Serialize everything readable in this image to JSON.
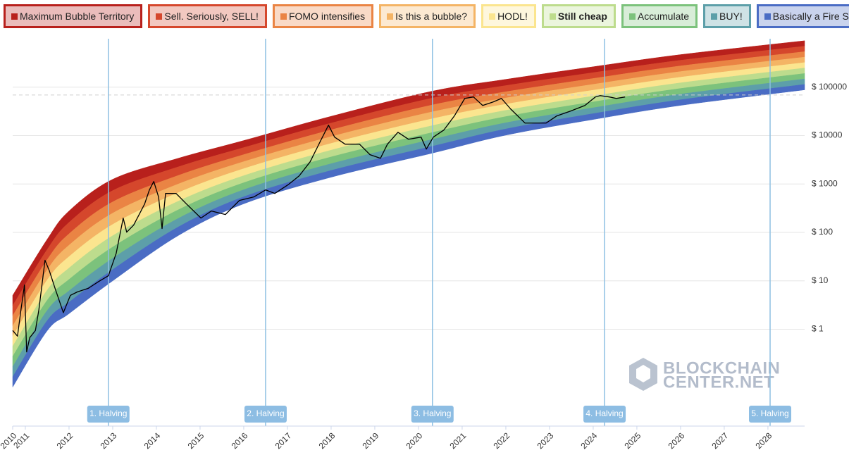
{
  "chart_data": {
    "type": "line",
    "log_y": true,
    "grid": true,
    "bands": [
      {
        "name": "Maximum Bubble Territory",
        "color": "#b8201c"
      },
      {
        "name": "Sell. Seriously, SELL!",
        "color": "#d5472c"
      },
      {
        "name": "FOMO intensifies",
        "color": "#ea8444"
      },
      {
        "name": "Is this a bubble?",
        "color": "#f4b465"
      },
      {
        "name": "HODL!",
        "color": "#fbe58f"
      },
      {
        "name": "Still cheap",
        "color": "#bddc8d"
      },
      {
        "name": "Accumulate",
        "color": "#7cc27c"
      },
      {
        "name": "BUY!",
        "color": "#5d9fa9"
      },
      {
        "name": "Basically a Fire Sale",
        "color": "#4a6cc4"
      }
    ],
    "highlighted_band": 5,
    "rainbow": {
      "x": [
        2010.71,
        2011.5,
        2012,
        2013,
        2014.5,
        2016,
        2018,
        2020.3,
        2022,
        2024,
        2026,
        2028.84
      ],
      "upper": [
        5,
        72,
        277,
        1250,
        3400,
        7900,
        25000,
        82000,
        145000,
        264000,
        470000,
        910000
      ],
      "lower": [
        0.064,
        0.93,
        2.1,
        10,
        86,
        390,
        1380,
        4300,
        10200,
        21500,
        42000,
        88000
      ]
    },
    "series": [
      {
        "color": "#000000",
        "x": [
          2010.71,
          2010.82,
          2010.9,
          2010.98,
          2011.03,
          2011.1,
          2011.23,
          2011.31,
          2011.39,
          2011.45,
          2011.55,
          2011.68,
          2011.87,
          2012.03,
          2012.19,
          2012.44,
          2012.68,
          2012.9,
          2013.08,
          2013.24,
          2013.32,
          2013.48,
          2013.73,
          2013.84,
          2013.94,
          2014.05,
          2014.13,
          2014.21,
          2014.45,
          2014.69,
          2015.02,
          2015.26,
          2015.58,
          2015.9,
          2016.23,
          2016.5,
          2016.71,
          2017.03,
          2017.27,
          2017.52,
          2017.76,
          2017.94,
          2018.08,
          2018.32,
          2018.65,
          2018.89,
          2019.13,
          2019.29,
          2019.53,
          2019.77,
          2020.06,
          2020.18,
          2020.34,
          2020.58,
          2020.82,
          2021.06,
          2021.26,
          2021.47,
          2021.71,
          2021.9,
          2022.11,
          2022.44,
          2022.68,
          2022.92,
          2023.16,
          2023.48,
          2023.81,
          2024.05,
          2024.16,
          2024.37,
          2024.53,
          2024.73
        ],
        "values": [
          0.94,
          0.72,
          2.55,
          8.2,
          0.34,
          0.67,
          0.94,
          2.55,
          9.7,
          26.6,
          16.1,
          7,
          2.2,
          5,
          5.9,
          7,
          9.7,
          12.7,
          37,
          198,
          101,
          142,
          386,
          755,
          1128,
          540,
          120,
          638,
          638,
          386,
          198,
          277,
          234,
          457,
          540,
          755,
          638,
          986,
          1475,
          2880,
          7850,
          16400,
          9290,
          6650,
          6650,
          4030,
          3400,
          6650,
          11700,
          8400,
          9290,
          5260,
          9290,
          13000,
          25300,
          58500,
          62700,
          41900,
          49500,
          58500,
          35400,
          18100,
          18100,
          18100,
          25300,
          32000,
          41900,
          62700,
          67000,
          62700,
          58500,
          62700
        ]
      }
    ],
    "reference_line": 69000,
    "halvings": [
      {
        "label": "1. Halving",
        "x": 2012.9
      },
      {
        "label": "2. Halving",
        "x": 2016.5
      },
      {
        "label": "3. Halving",
        "x": 2020.32
      },
      {
        "label": "4. Halving",
        "x": 2024.26
      },
      {
        "label": "5. Halving",
        "x": 2028.05
      }
    ],
    "watermark": [
      "BLOCKCHAIN",
      "CENTER.NET"
    ],
    "ylim": [
      0.01,
      1000000
    ],
    "yticks": [
      {
        "value": 1,
        "label": "$ 1"
      },
      {
        "value": 10,
        "label": "$ 10"
      },
      {
        "value": 100,
        "label": "$ 100"
      },
      {
        "value": 1000,
        "label": "$ 1000"
      },
      {
        "value": 10000,
        "label": "$ 10000"
      },
      {
        "value": 100000,
        "label": "$ 100000"
      }
    ],
    "xlim": [
      2010.71,
      2028.84
    ],
    "xticks": [
      {
        "value": 2010.71,
        "label": "2010"
      },
      2011,
      2012,
      2013,
      2014,
      2015,
      2016,
      2017,
      2018,
      2019,
      2020,
      2021,
      2022,
      2023,
      2024,
      2025,
      2026,
      2027,
      2028
    ]
  }
}
